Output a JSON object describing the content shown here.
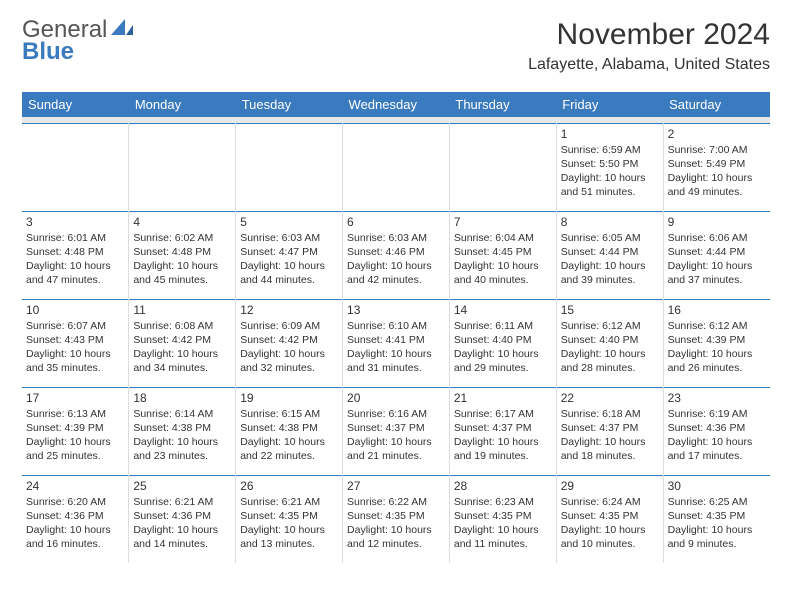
{
  "logo": {
    "top": "General",
    "bottom": "Blue"
  },
  "title": "November 2024",
  "location": "Lafayette, Alabama, United States",
  "weekdays": [
    "Sunday",
    "Monday",
    "Tuesday",
    "Wednesday",
    "Thursday",
    "Friday",
    "Saturday"
  ],
  "colors": {
    "accent": "#3a7abf",
    "text": "#333333",
    "grid": "#dddddd",
    "background": "#ffffff",
    "blank_row": "#e8e8e8"
  },
  "calendar": {
    "type": "table",
    "columns": 7,
    "first_weekday_index": 5,
    "days": [
      {
        "n": 1,
        "sunrise": "6:59 AM",
        "sunset": "5:50 PM",
        "dl_h": 10,
        "dl_m": 51
      },
      {
        "n": 2,
        "sunrise": "7:00 AM",
        "sunset": "5:49 PM",
        "dl_h": 10,
        "dl_m": 49
      },
      {
        "n": 3,
        "sunrise": "6:01 AM",
        "sunset": "4:48 PM",
        "dl_h": 10,
        "dl_m": 47
      },
      {
        "n": 4,
        "sunrise": "6:02 AM",
        "sunset": "4:48 PM",
        "dl_h": 10,
        "dl_m": 45
      },
      {
        "n": 5,
        "sunrise": "6:03 AM",
        "sunset": "4:47 PM",
        "dl_h": 10,
        "dl_m": 44
      },
      {
        "n": 6,
        "sunrise": "6:03 AM",
        "sunset": "4:46 PM",
        "dl_h": 10,
        "dl_m": 42
      },
      {
        "n": 7,
        "sunrise": "6:04 AM",
        "sunset": "4:45 PM",
        "dl_h": 10,
        "dl_m": 40
      },
      {
        "n": 8,
        "sunrise": "6:05 AM",
        "sunset": "4:44 PM",
        "dl_h": 10,
        "dl_m": 39
      },
      {
        "n": 9,
        "sunrise": "6:06 AM",
        "sunset": "4:44 PM",
        "dl_h": 10,
        "dl_m": 37
      },
      {
        "n": 10,
        "sunrise": "6:07 AM",
        "sunset": "4:43 PM",
        "dl_h": 10,
        "dl_m": 35
      },
      {
        "n": 11,
        "sunrise": "6:08 AM",
        "sunset": "4:42 PM",
        "dl_h": 10,
        "dl_m": 34
      },
      {
        "n": 12,
        "sunrise": "6:09 AM",
        "sunset": "4:42 PM",
        "dl_h": 10,
        "dl_m": 32
      },
      {
        "n": 13,
        "sunrise": "6:10 AM",
        "sunset": "4:41 PM",
        "dl_h": 10,
        "dl_m": 31
      },
      {
        "n": 14,
        "sunrise": "6:11 AM",
        "sunset": "4:40 PM",
        "dl_h": 10,
        "dl_m": 29
      },
      {
        "n": 15,
        "sunrise": "6:12 AM",
        "sunset": "4:40 PM",
        "dl_h": 10,
        "dl_m": 28
      },
      {
        "n": 16,
        "sunrise": "6:12 AM",
        "sunset": "4:39 PM",
        "dl_h": 10,
        "dl_m": 26
      },
      {
        "n": 17,
        "sunrise": "6:13 AM",
        "sunset": "4:39 PM",
        "dl_h": 10,
        "dl_m": 25
      },
      {
        "n": 18,
        "sunrise": "6:14 AM",
        "sunset": "4:38 PM",
        "dl_h": 10,
        "dl_m": 23
      },
      {
        "n": 19,
        "sunrise": "6:15 AM",
        "sunset": "4:38 PM",
        "dl_h": 10,
        "dl_m": 22
      },
      {
        "n": 20,
        "sunrise": "6:16 AM",
        "sunset": "4:37 PM",
        "dl_h": 10,
        "dl_m": 21
      },
      {
        "n": 21,
        "sunrise": "6:17 AM",
        "sunset": "4:37 PM",
        "dl_h": 10,
        "dl_m": 19
      },
      {
        "n": 22,
        "sunrise": "6:18 AM",
        "sunset": "4:37 PM",
        "dl_h": 10,
        "dl_m": 18
      },
      {
        "n": 23,
        "sunrise": "6:19 AM",
        "sunset": "4:36 PM",
        "dl_h": 10,
        "dl_m": 17
      },
      {
        "n": 24,
        "sunrise": "6:20 AM",
        "sunset": "4:36 PM",
        "dl_h": 10,
        "dl_m": 16
      },
      {
        "n": 25,
        "sunrise": "6:21 AM",
        "sunset": "4:36 PM",
        "dl_h": 10,
        "dl_m": 14
      },
      {
        "n": 26,
        "sunrise": "6:21 AM",
        "sunset": "4:35 PM",
        "dl_h": 10,
        "dl_m": 13
      },
      {
        "n": 27,
        "sunrise": "6:22 AM",
        "sunset": "4:35 PM",
        "dl_h": 10,
        "dl_m": 12
      },
      {
        "n": 28,
        "sunrise": "6:23 AM",
        "sunset": "4:35 PM",
        "dl_h": 10,
        "dl_m": 11
      },
      {
        "n": 29,
        "sunrise": "6:24 AM",
        "sunset": "4:35 PM",
        "dl_h": 10,
        "dl_m": 10
      },
      {
        "n": 30,
        "sunrise": "6:25 AM",
        "sunset": "4:35 PM",
        "dl_h": 10,
        "dl_m": 9
      }
    ]
  },
  "labels": {
    "sunrise_prefix": "Sunrise: ",
    "sunset_prefix": "Sunset: ",
    "daylight_prefix": "Daylight: ",
    "hours_word": " hours",
    "and_word": "and ",
    "minutes_word": " minutes."
  }
}
